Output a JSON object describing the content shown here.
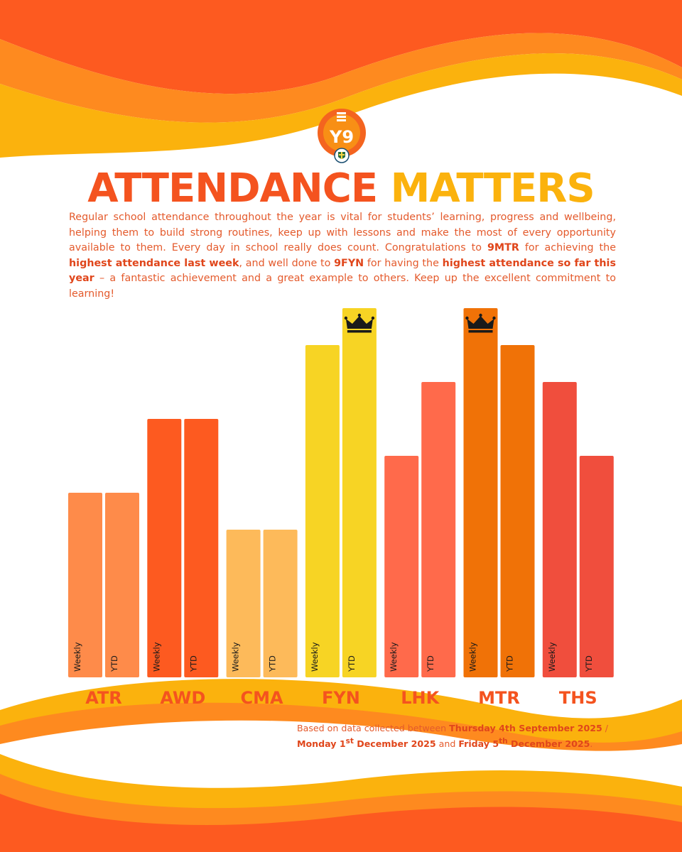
{
  "logo": {
    "text": "Y9",
    "colors": {
      "outer": "#f4641f",
      "inner": "#fbb20d"
    }
  },
  "header": {
    "title_part1": "ATTENDANCE",
    "title_part2": "MATTERS"
  },
  "intro": {
    "p1": "Regular school attendance throughout the year is vital for students’ learning, progress and wellbeing, helping them to build strong routines, keep up with lessons and make the most of every opportunity available to them. Every day in school really does count. Congratulations to ",
    "b1": "9MTR",
    "p2": " for achieving the ",
    "b2": "highest attendance last week",
    "p3": ", and well done to ",
    "b3": "9FYN",
    "p4": " for having the ",
    "b4": "highest attendance so far this year",
    "p5": " – a fantastic achievement and a great example to others. Keep up the excellent commitment to learning!"
  },
  "chart_data": {
    "type": "bar",
    "title": "ATTENDANCE MATTERS",
    "categories": [
      "ATR",
      "AWD",
      "CMA",
      "FYN",
      "LHK",
      "MTR",
      "THS"
    ],
    "series": [
      {
        "name": "Weekly",
        "values": [
          5,
          7,
          4,
          9,
          6,
          10,
          8
        ]
      },
      {
        "name": "YTD",
        "values": [
          5,
          7,
          4,
          10,
          8,
          9,
          6
        ]
      }
    ],
    "ylim": [
      0,
      10
    ],
    "colors": [
      "#fe8b4a",
      "#fd5a20",
      "#fdba5a",
      "#f7d424",
      "#ff6a4b",
      "#f07207",
      "#f04e3d"
    ],
    "highlights": [
      {
        "category": "FYN",
        "series": "YTD",
        "icon": "crown-icon"
      },
      {
        "category": "MTR",
        "series": "Weekly",
        "icon": "crown-icon"
      }
    ],
    "xlabel": "",
    "ylabel": ""
  },
  "footnote": {
    "t1": "Based on data collected between ",
    "b1": "Thursday 4th September 2025",
    "t2": " / ",
    "b2a": "Monday 1",
    "b2sup": "st",
    "b2b": " December 2025",
    "t3": " and ",
    "b3a": "Friday 5",
    "b3sup": "th",
    "b3b": " December 2025",
    "t4": "."
  },
  "decoration": {
    "wave_colors": [
      "#fd5a20",
      "#fe8a1f",
      "#fbb20d"
    ]
  }
}
